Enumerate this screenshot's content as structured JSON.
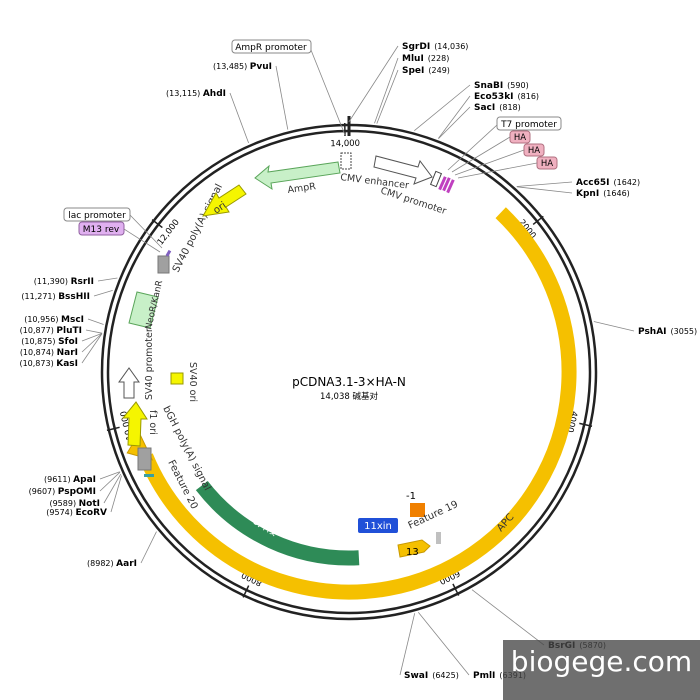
{
  "plasmid": {
    "name": "pCDNA3.1-3×HA-N",
    "size_text": "14,038 碱基对",
    "total_bp": 14038
  },
  "colors": {
    "backbone": "#222222",
    "apc": "#f5c000",
    "apc_edge": "#c99a00",
    "green": "#2e8b57",
    "ampr": "#c8f0c8",
    "ampr_edge": "#5aa55a",
    "ori": "#f5f500",
    "ori_edge": "#999900",
    "grey": "#a0a0a0",
    "blue": "#2050d8",
    "orange": "#f08000",
    "ha": "#f0b0c0",
    "m13": "#e0b0f0"
  },
  "ticks": [
    {
      "pos": 2000,
      "label": "2000"
    },
    {
      "pos": 4000,
      "label": "4000"
    },
    {
      "pos": 6000,
      "label": "6000"
    },
    {
      "pos": 8000,
      "label": "8000"
    },
    {
      "pos": 10000,
      "label": "10,000"
    },
    {
      "pos": 12000,
      "label": "12,000"
    },
    {
      "pos": 14000,
      "label": "14,000"
    }
  ],
  "sites": [
    {
      "name": "SgrDI",
      "pos": "(14,036)",
      "bp": 14036,
      "side": "right",
      "boxed": false
    },
    {
      "name": "MluI",
      "pos": "(228)",
      "bp": 228,
      "side": "right",
      "boxed": false
    },
    {
      "name": "SpeI",
      "pos": "(249)",
      "bp": 249,
      "side": "right",
      "boxed": false
    },
    {
      "name": "SnaBI",
      "pos": "(590)",
      "bp": 590,
      "side": "right",
      "boxed": false
    },
    {
      "name": "Eco53kI",
      "pos": "(816)",
      "bp": 816,
      "side": "right",
      "boxed": false
    },
    {
      "name": "SacI",
      "pos": "(818)",
      "bp": 818,
      "side": "right",
      "boxed": false
    },
    {
      "name": "Acc65I",
      "pos": "(1642)",
      "bp": 1642,
      "side": "right",
      "boxed": false
    },
    {
      "name": "KpnI",
      "pos": "(1646)",
      "bp": 1646,
      "side": "right",
      "boxed": false
    },
    {
      "name": "PshAI",
      "pos": "(3055)",
      "bp": 3055,
      "side": "right",
      "boxed": false
    },
    {
      "name": "BsrGI",
      "pos": "(5870)",
      "bp": 5870,
      "side": "right",
      "boxed": false
    },
    {
      "name": "PmlI",
      "pos": "(6391)",
      "bp": 6391,
      "side": "right",
      "boxed": false
    },
    {
      "name": "SwaI",
      "pos": "(6425)",
      "bp": 6425,
      "side": "left",
      "boxed": false
    },
    {
      "name": "AarI",
      "pos": "(8982)",
      "bp": 8982,
      "side": "left",
      "boxed": false
    },
    {
      "name": "EcoRV",
      "pos": "(9574)",
      "bp": 9574,
      "side": "left",
      "boxed": false
    },
    {
      "name": "NotI",
      "pos": "(9589)",
      "bp": 9589,
      "side": "left",
      "boxed": false
    },
    {
      "name": "PspOMI",
      "pos": "(9607)",
      "bp": 9607,
      "side": "left",
      "boxed": false
    },
    {
      "name": "ApaI",
      "pos": "(9611)",
      "bp": 9611,
      "side": "left",
      "boxed": false
    },
    {
      "name": "KasI",
      "pos": "(10,873)",
      "bp": 10873,
      "side": "left",
      "boxed": false
    },
    {
      "name": "NarI",
      "pos": "(10,874)",
      "bp": 10874,
      "side": "left",
      "boxed": false
    },
    {
      "name": "SfoI",
      "pos": "(10,875)",
      "bp": 10875,
      "side": "left",
      "boxed": false
    },
    {
      "name": "PluTI",
      "pos": "(10,877)",
      "bp": 10877,
      "side": "left",
      "boxed": false
    },
    {
      "name": "MscI",
      "pos": "(10,956)",
      "bp": 10956,
      "side": "left",
      "boxed": false
    },
    {
      "name": "BssHII",
      "pos": "(11,271)",
      "bp": 11271,
      "side": "left",
      "boxed": false
    },
    {
      "name": "RsrII",
      "pos": "(11,390)",
      "bp": 11390,
      "side": "left",
      "boxed": false
    },
    {
      "name": "AhdI",
      "pos": "(13,115)",
      "bp": 13115,
      "side": "left",
      "boxed": false
    },
    {
      "name": "PvuI",
      "pos": "(13,485)",
      "bp": 13485,
      "side": "left",
      "boxed": false
    }
  ],
  "boxed_labels": {
    "ampr_promoter": "AmpR promoter",
    "t7_promoter": "T7 promoter",
    "ha1": "HA",
    "ha2": "HA",
    "ha3": "HA",
    "lac_promoter": "lac promoter",
    "m13_rev": "M13 rev"
  },
  "features": {
    "apc": "APC",
    "ampr": "AmpR",
    "ori": "ori",
    "cmv_enhancer": "CMV enhancer",
    "cmv_promoter": "CMV promoter",
    "sv40_polya": "SV40 poly(A) signal",
    "neor": "NeoR/KanR",
    "sv40_promoter": "SV40 promoter",
    "sv40_ori": "SV40 ori",
    "f1_ori": "f1 ori",
    "bgh_polya": "bGH poly(A) signal",
    "feature20": "Feature 20",
    "frag8": "-8片段",
    "xin11": "11xin",
    "neg1": "-1",
    "feature19": "Feature 19",
    "n13": "13"
  },
  "watermark": "biogege.com"
}
